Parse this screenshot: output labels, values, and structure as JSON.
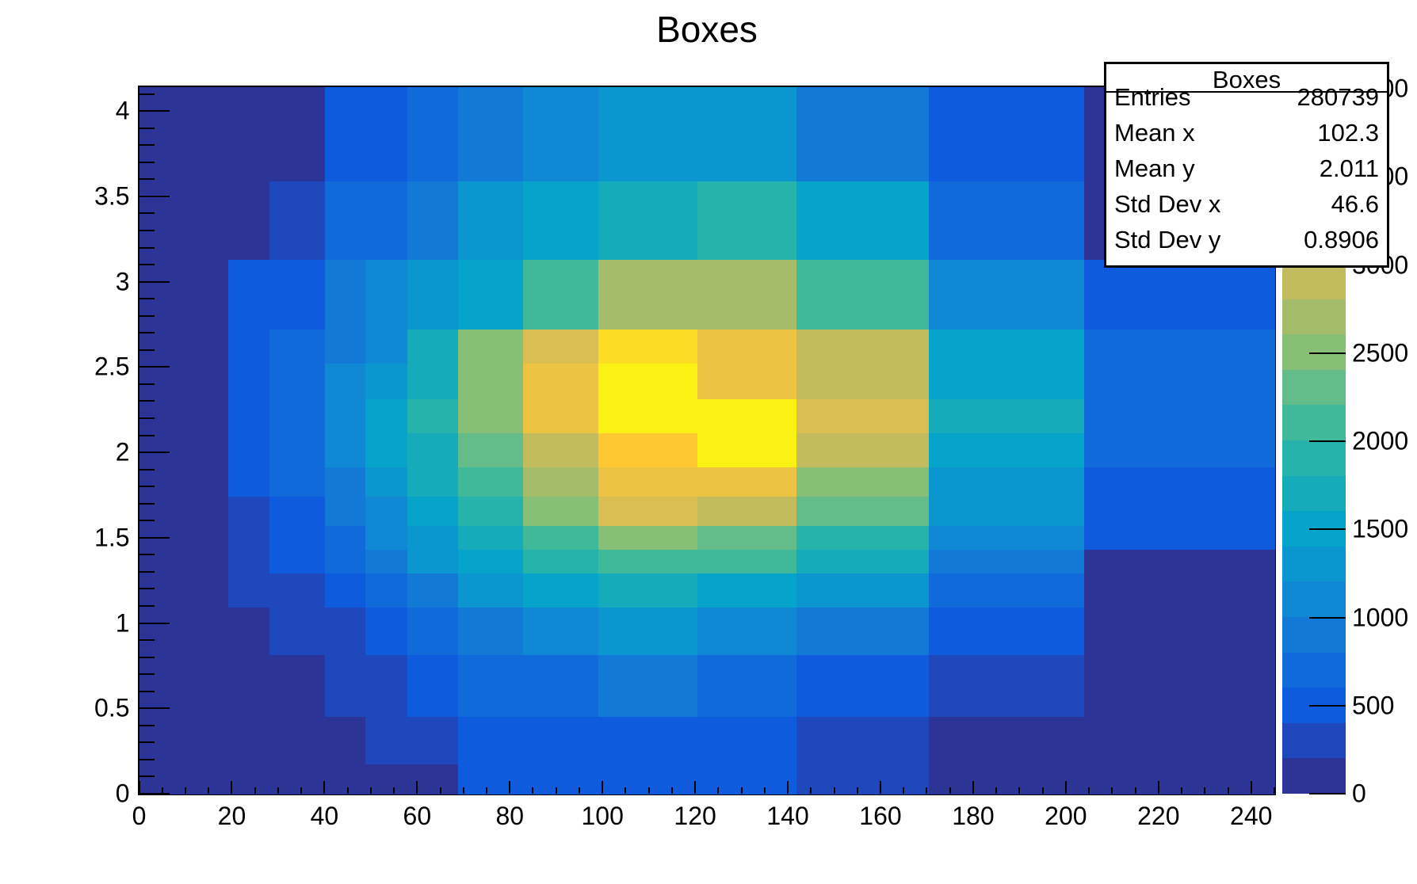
{
  "title": "Boxes",
  "stats": {
    "title": "Boxes",
    "rows": [
      [
        "Entries",
        "280739"
      ],
      [
        "Mean x",
        "102.3"
      ],
      [
        "Mean y",
        "2.011"
      ],
      [
        "Std Dev x",
        "46.6"
      ],
      [
        "Std Dev y",
        "0.8906"
      ]
    ]
  },
  "axes": {
    "x_tick_labels": [
      "0",
      "20",
      "40",
      "60",
      "80",
      "100",
      "120",
      "140",
      "160",
      "180",
      "200",
      "220",
      "240"
    ],
    "x_tick_values": [
      0,
      20,
      40,
      60,
      80,
      100,
      120,
      140,
      160,
      180,
      200,
      220,
      240
    ],
    "x_minor_step": 5,
    "y_tick_labels": [
      "0",
      "0.5",
      "1",
      "1.5",
      "2",
      "2.5",
      "3",
      "3.5",
      "4"
    ],
    "y_tick_values": [
      0,
      0.5,
      1,
      1.5,
      2,
      2.5,
      3,
      3.5,
      4
    ],
    "y_minor_step": 0.1
  },
  "palette_axis": {
    "labels": [
      "0",
      "500",
      "1000",
      "1500",
      "2000",
      "2500",
      "3000",
      "3500",
      "4000"
    ],
    "values": [
      0,
      500,
      1000,
      1500,
      2000,
      2500,
      3000,
      3500,
      4000
    ]
  },
  "chart_data": {
    "type": "heatmap",
    "title": "Boxes",
    "entries": 280739,
    "mean_x": 102.3,
    "mean_y": 2.011,
    "std_dev_x": 46.6,
    "std_dev_y": 0.8906,
    "xlabel": "",
    "ylabel": "",
    "x_range": [
      0,
      245
    ],
    "y_range": [
      0,
      4.14
    ],
    "z_range": [
      0,
      4010
    ],
    "z_contour_step": 200,
    "grid": false,
    "legend_position": "right-colorbar",
    "x_edges": [
      0,
      19.2,
      28.1,
      40.1,
      48.8,
      57.9,
      68.8,
      82.9,
      99.1,
      120.5,
      141.9,
      170.4,
      203.9,
      245
    ],
    "y_edges_desc": [
      4.14,
      3.59,
      3.13,
      2.72,
      2.52,
      2.31,
      2.11,
      1.91,
      1.74,
      1.57,
      1.43,
      1.29,
      1.09,
      0.81,
      0.45,
      0.17,
      0
    ],
    "palette": [
      "#2d3498",
      "#1e48bb",
      "#0f5bdd",
      "#116ada",
      "#1379d7",
      "#1188d3",
      "#0b96cf",
      "#06a4ca",
      "#16abbb",
      "#26b3ab",
      "#40b99b",
      "#63bc89",
      "#87bf77",
      "#a5bd6b",
      "#c2bc5f",
      "#dabe51",
      "#ecc342",
      "#fec832",
      "#fcdd24",
      "#faf115"
    ],
    "z_band_matrix": [
      [
        0,
        0,
        0,
        2,
        2,
        3,
        4,
        5,
        6,
        6,
        4,
        2,
        0
      ],
      [
        0,
        0,
        1,
        3,
        3,
        4,
        6,
        7,
        8,
        9,
        7,
        3,
        0
      ],
      [
        0,
        2,
        2,
        4,
        5,
        6,
        7,
        10,
        13,
        13,
        10,
        5,
        2
      ],
      [
        0,
        2,
        3,
        4,
        5,
        8,
        12,
        15,
        18,
        16,
        14,
        7,
        3
      ],
      [
        0,
        2,
        3,
        5,
        6,
        8,
        12,
        16,
        19,
        16,
        14,
        7,
        3
      ],
      [
        0,
        2,
        3,
        5,
        7,
        9,
        12,
        16,
        19,
        19,
        15,
        8,
        3
      ],
      [
        0,
        2,
        3,
        5,
        7,
        8,
        11,
        14,
        17,
        19,
        14,
        7,
        3
      ],
      [
        0,
        2,
        3,
        4,
        6,
        8,
        10,
        13,
        16,
        16,
        12,
        6,
        2
      ],
      [
        0,
        1,
        2,
        4,
        5,
        7,
        9,
        12,
        15,
        14,
        11,
        6,
        2
      ],
      [
        0,
        1,
        2,
        3,
        5,
        6,
        8,
        10,
        12,
        11,
        9,
        5,
        2
      ],
      [
        0,
        1,
        2,
        3,
        4,
        6,
        7,
        9,
        10,
        10,
        8,
        4,
        0
      ],
      [
        0,
        1,
        1,
        2,
        3,
        4,
        6,
        7,
        8,
        7,
        6,
        3,
        0
      ],
      [
        0,
        0,
        1,
        1,
        2,
        3,
        4,
        5,
        6,
        5,
        4,
        2,
        0
      ],
      [
        0,
        0,
        0,
        1,
        1,
        2,
        3,
        3,
        4,
        3,
        2,
        1,
        0
      ],
      [
        0,
        0,
        0,
        0,
        1,
        1,
        2,
        2,
        2,
        2,
        1,
        0,
        0
      ],
      [
        0,
        0,
        0,
        0,
        0,
        0,
        2,
        2,
        2,
        2,
        1,
        0,
        0
      ]
    ]
  }
}
